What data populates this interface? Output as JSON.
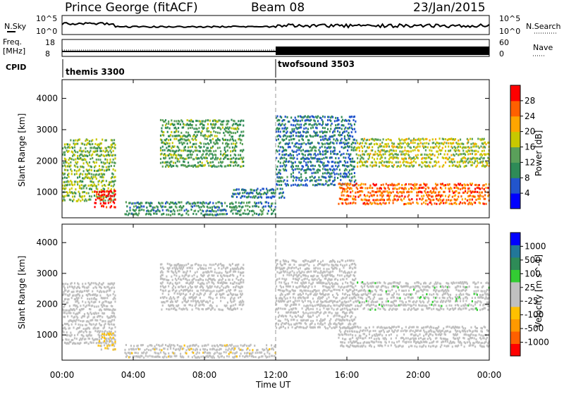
{
  "header": {
    "station": "Prince George (fitACF)",
    "beam": "Beam 08",
    "date": "23/Jan/2015"
  },
  "top_panels": {
    "nsky_label": "N.Sky",
    "nsky_ticks": [
      "10^5",
      "10^0"
    ],
    "nsearch_label": "N.Search",
    "nsearch_ticks": [
      "10^5",
      "10^0"
    ],
    "freq_label": "Freq.",
    "freq_unit": "[MHz]",
    "freq_ticks": [
      "18",
      "8"
    ],
    "nave_label": "Nave",
    "nave_ticks": [
      "60",
      "0"
    ],
    "cpid_label": "CPID",
    "cpid_modes": [
      {
        "name": "themis 3300",
        "start_hour": 0,
        "end_hour": 12
      },
      {
        "name": "twofsound 3503",
        "start_hour": 12,
        "end_hour": 24
      }
    ]
  },
  "x_axis": {
    "label": "Time UT",
    "ticks": [
      "00:00",
      "04:00",
      "08:00",
      "12:00",
      "16:00",
      "20:00",
      "00:00"
    ],
    "range_hours": [
      0,
      24
    ]
  },
  "power_panel": {
    "ylabel": "Slant Range [km]",
    "yticks": [
      "4000",
      "3000",
      "2000",
      "1000"
    ],
    "colorbar_title": "Power [dB]",
    "colorbar_ticks": [
      "28",
      "24",
      "20",
      "16",
      "12",
      "8",
      "4"
    ]
  },
  "velocity_panel": {
    "ylabel": "Slant Range [km]",
    "yticks": [
      "4000",
      "3000",
      "2000",
      "1000"
    ],
    "colorbar_title": "Velocity [m s^-1]",
    "colorbar_ticks": [
      "1000",
      "500",
      "100",
      "25",
      "-25",
      "-100",
      "-500",
      "-1000"
    ]
  },
  "chart_data": [
    {
      "type": "heatmap",
      "title": "Power",
      "xlabel": "Time UT",
      "ylabel": "Slant Range [km]",
      "x_range_hours": [
        0,
        24
      ],
      "ylim": [
        180,
        4600
      ],
      "colorbar": {
        "label": "Power [dB]",
        "range": [
          0,
          30
        ],
        "ticks": [
          28,
          24,
          20,
          16,
          12,
          8,
          4
        ],
        "colors": [
          "#0000ff",
          "#2255cc",
          "#2e8b57",
          "#5aa05a",
          "#c8c800",
          "#ffa500",
          "#ff6000",
          "#ff0000"
        ]
      },
      "echo_regions": [
        {
          "t_start": 0.0,
          "t_end": 3.0,
          "r_start": 700,
          "r_end": 2700,
          "power_db": 14
        },
        {
          "t_start": 1.8,
          "t_end": 3.0,
          "r_start": 500,
          "r_end": 1100,
          "power_db": 28
        },
        {
          "t_start": 5.5,
          "t_end": 10.2,
          "r_start": 1800,
          "r_end": 3400,
          "power_db": 12
        },
        {
          "t_start": 9.5,
          "t_end": 12.5,
          "r_start": 800,
          "r_end": 1200,
          "power_db": 8
        },
        {
          "t_start": 3.5,
          "t_end": 12.0,
          "r_start": 250,
          "r_end": 700,
          "power_db": 10
        },
        {
          "t_start": 12.0,
          "t_end": 16.5,
          "r_start": 1200,
          "r_end": 3500,
          "power_db": 8
        },
        {
          "t_start": 15.5,
          "t_end": 24.0,
          "r_start": 600,
          "r_end": 1300,
          "power_db": 24
        },
        {
          "t_start": 16.5,
          "t_end": 24.0,
          "r_start": 1800,
          "r_end": 2800,
          "power_db": 16
        }
      ]
    },
    {
      "type": "heatmap",
      "title": "Velocity",
      "xlabel": "Time UT",
      "ylabel": "Slant Range [km]",
      "x_range_hours": [
        0,
        24
      ],
      "ylim": [
        180,
        4600
      ],
      "colorbar": {
        "label": "Velocity [m s^-1]",
        "range": [
          -1000,
          1000
        ],
        "ticks": [
          1000,
          500,
          100,
          25,
          -25,
          -100,
          -500,
          -1000
        ],
        "colors": [
          "#ff0000",
          "#ff6000",
          "#ff9900",
          "#ffc000",
          "#c0c0c0",
          "#c0c0c0",
          "#33cc33",
          "#2e8b57",
          "#227799",
          "#0000ff"
        ]
      },
      "ground_scatter_color": "#c0c0c0",
      "echo_regions": [
        {
          "t_start": 0.0,
          "t_end": 3.0,
          "r_start": 700,
          "r_end": 2700,
          "velocity": 0
        },
        {
          "t_start": 2.0,
          "t_end": 3.0,
          "r_start": 500,
          "r_end": 1100,
          "velocity": -200
        },
        {
          "t_start": 5.5,
          "t_end": 10.2,
          "r_start": 1800,
          "r_end": 3400,
          "velocity": 0
        },
        {
          "t_start": 3.5,
          "t_end": 12.0,
          "r_start": 250,
          "r_end": 700,
          "velocity": -150
        },
        {
          "t_start": 12.0,
          "t_end": 16.5,
          "r_start": 1200,
          "r_end": 3500,
          "velocity": 0
        },
        {
          "t_start": 15.5,
          "t_end": 24.0,
          "r_start": 600,
          "r_end": 1300,
          "velocity": 0
        },
        {
          "t_start": 16.5,
          "t_end": 24.0,
          "r_start": 1800,
          "r_end": 2800,
          "velocity": 150
        }
      ]
    }
  ]
}
